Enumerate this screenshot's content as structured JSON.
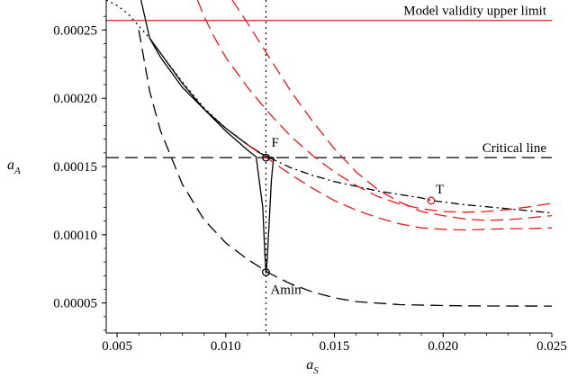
{
  "chart_data": {
    "type": "line",
    "xlabel": "a",
    "xlabel_sub": "S",
    "ylabel": "a",
    "ylabel_sub": "A",
    "xlim": [
      0.0045,
      0.025
    ],
    "ylim": [
      2.8e-05,
      0.000272
    ],
    "x_ticks": [
      0.005,
      0.01,
      0.015,
      0.02,
      0.025
    ],
    "x_tick_labels": [
      "0.005",
      "0.010",
      "0.015",
      "0.020",
      "0.025"
    ],
    "y_ticks": [
      5e-05,
      0.0001,
      0.00015,
      0.0002,
      0.00025
    ],
    "y_tick_labels": [
      "0.00005",
      "0.00010",
      "0.00015",
      "0.00020",
      "0.00025"
    ],
    "grid": false,
    "reference_lines": [
      {
        "label": "Model validity upper limit",
        "y": 0.000257,
        "color": "#e41a1c",
        "dash": "solid"
      },
      {
        "label": "Critical line",
        "y": 0.0001565,
        "color": "#000000",
        "dash": "long-dash"
      },
      {
        "label": "",
        "x": 0.01185,
        "color": "#000000",
        "dash": "dotted"
      }
    ],
    "series": [
      {
        "color": "#000000",
        "dash": "long-dash",
        "x": [
          0.006,
          0.0065,
          0.007,
          0.008,
          0.009,
          0.01,
          0.011,
          0.012,
          0.013,
          0.014,
          0.015,
          0.016,
          0.018,
          0.02,
          0.022,
          0.025
        ],
        "y": [
          0.00025,
          0.000205,
          0.000176,
          0.000137,
          0.000111,
          9.4e-05,
          8.2e-05,
          7.18e-05,
          6.4e-05,
          5.8e-05,
          5.38e-05,
          5.1e-05,
          4.88e-05,
          4.81e-05,
          4.78e-05,
          4.77e-05
        ]
      },
      {
        "color": "#000000",
        "dash": "solid",
        "x": [
          0.0061,
          0.0065,
          0.007,
          0.008,
          0.009,
          0.01,
          0.011,
          0.0115,
          0.0118,
          0.0119,
          0.012,
          0.0121,
          0.0122
        ],
        "y": [
          0.000272,
          0.000244,
          0.00023,
          0.000208,
          0.000192,
          0.000178,
          0.000166,
          0.0001605,
          0.000158,
          0.0001575,
          0.000157,
          0.0001567,
          0.0001565
        ]
      },
      {
        "color": "#000000",
        "dash": "dotted",
        "x": [
          0.0045,
          0.005,
          0.0055,
          0.006,
          0.0065,
          0.007,
          0.008,
          0.009,
          0.01,
          0.011,
          0.0115,
          0.0118
        ],
        "y": [
          0.000272,
          0.000268,
          0.000262,
          0.000253,
          0.000244,
          0.000233,
          0.000212,
          0.000193,
          0.000178,
          0.000166,
          0.000161,
          0.000158
        ]
      },
      {
        "color": "#000000",
        "dash": "dash-dot",
        "x": [
          0.012,
          0.013,
          0.014,
          0.015,
          0.016,
          0.017,
          0.018,
          0.019,
          0.0195,
          0.02,
          0.021,
          0.022,
          0.023,
          0.024,
          0.025
        ],
        "y": [
          0.0001565,
          0.000149,
          0.0001435,
          0.000139,
          0.0001355,
          0.000132,
          0.0001295,
          0.000127,
          0.000125,
          0.000124,
          0.000122,
          0.0001205,
          0.000119,
          0.0001175,
          0.000116
        ]
      },
      {
        "color": "#000000",
        "dash": "solid",
        "x": [
          0.0065,
          0.007,
          0.008,
          0.009,
          0.01,
          0.011,
          0.0114,
          0.0117,
          0.0118,
          0.01185,
          0.0119,
          0.012,
          0.0121,
          0.0122,
          0.01215
        ],
        "y": [
          0.000244,
          0.000233,
          0.000211,
          0.000192,
          0.000176,
          0.000162,
          0.000157,
          0.00012,
          8.5e-05,
          7.2e-05,
          8e-05,
          0.00011,
          0.00014,
          0.0001565,
          0.0001565
        ]
      },
      {
        "color": "#e41a1c",
        "dash": "long-dash",
        "x": [
          0.0087,
          0.009,
          0.0095,
          0.01,
          0.011,
          0.012,
          0.013,
          0.014,
          0.015,
          0.016,
          0.017,
          0.018,
          0.019,
          0.02,
          0.021,
          0.022,
          0.023,
          0.024,
          0.025
        ],
        "y": [
          0.000272,
          0.00026,
          0.000244,
          0.00023,
          0.000208,
          0.000189,
          0.000172,
          0.000158,
          0.000146,
          0.000136,
          0.000128,
          0.0001225,
          0.000119,
          0.000117,
          0.0001165,
          0.000117,
          0.0001185,
          0.0001205,
          0.000123
        ]
      },
      {
        "color": "#e41a1c",
        "dash": "long-dash",
        "x": [
          0.0103,
          0.011,
          0.012,
          0.013,
          0.014,
          0.015,
          0.016,
          0.017,
          0.018,
          0.019,
          0.02,
          0.021,
          0.022,
          0.023,
          0.024,
          0.025
        ],
        "y": [
          0.000272,
          0.000255,
          0.00023,
          0.000205,
          0.000183,
          0.000163,
          0.000146,
          0.000133,
          0.000124,
          0.000117,
          0.000114,
          0.0001115,
          0.0001105,
          0.000111,
          0.0001125,
          0.000114
        ]
      },
      {
        "color": "#e41a1c",
        "dash": "long-dash",
        "x": [
          0.011,
          0.0115,
          0.012,
          0.013,
          0.014,
          0.015,
          0.016,
          0.017,
          0.018,
          0.019,
          0.02,
          0.021,
          0.022,
          0.023,
          0.024,
          0.025
        ],
        "y": [
          0.000166,
          0.000161,
          0.000155,
          0.000144,
          0.000134,
          0.000125,
          0.000118,
          0.0001125,
          0.000108,
          0.000105,
          0.000104,
          0.0001035,
          0.000104,
          0.0001045,
          0.0001045,
          0.000105
        ]
      }
    ],
    "points": [
      {
        "label": "F",
        "x": 0.01185,
        "y": 0.0001565,
        "color": "#000000"
      },
      {
        "label": "T",
        "x": 0.01945,
        "y": 0.000125,
        "color": "#e41a1c"
      },
      {
        "label": "Amin",
        "x": 0.01185,
        "y": 7.25e-05,
        "color": "#000000"
      }
    ]
  }
}
